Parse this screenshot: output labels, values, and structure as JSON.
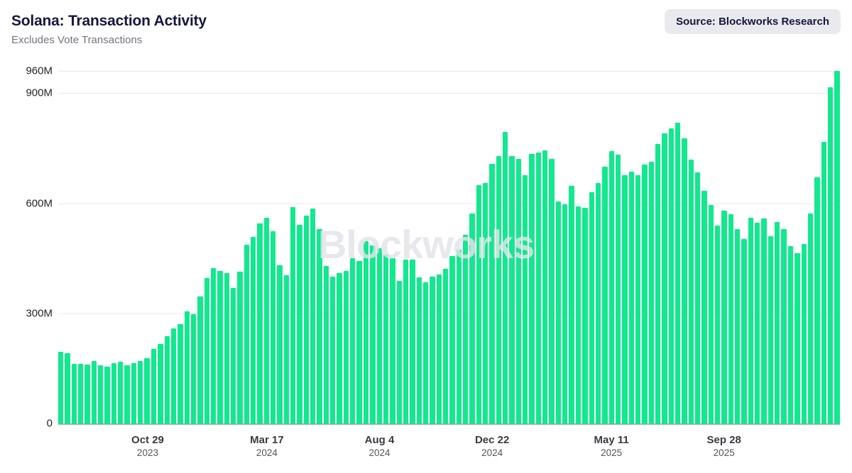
{
  "header": {
    "title": "Solana: Transaction Activity",
    "subtitle": "Excludes Vote Transactions",
    "source_badge": "Source: Blockworks Research"
  },
  "watermark": "Blockworks",
  "colors": {
    "bar": "#12e88e",
    "title_text": "#16163F",
    "subtitle_text": "#73737f",
    "badge_bg": "#e9eaed",
    "gridline": "#e9eaec",
    "baseline": "#a6a9ae"
  },
  "chart_data": {
    "type": "bar",
    "title": "Solana: Transaction Activity",
    "subtitle": "Excludes Vote Transactions",
    "unit": "transactions per period (millions)",
    "ylim": [
      0,
      960
    ],
    "grid": "horizontal",
    "legend": "none",
    "y_ticks": [
      {
        "label": "960M",
        "value": 960
      },
      {
        "label": "900M",
        "value": 900
      },
      {
        "label": "600M",
        "value": 600
      },
      {
        "label": "300M",
        "value": 300
      },
      {
        "label": "0",
        "value": 0
      }
    ],
    "x_tick_labels": [
      {
        "label": "Oct 29",
        "year": "2023",
        "bar_index": 13
      },
      {
        "label": "Mar 17",
        "year": "2024",
        "bar_index": 31
      },
      {
        "label": "Aug 4",
        "year": "2024",
        "bar_index": 48
      },
      {
        "label": "Dec 22",
        "year": "2024",
        "bar_index": 65
      },
      {
        "label": "May 11",
        "year": "2025",
        "bar_index": 83
      },
      {
        "label": "Sep 28",
        "year": "2025",
        "bar_index": 100
      }
    ],
    "values_unit": "M",
    "values": [
      197,
      193,
      164,
      163,
      162,
      172,
      160,
      156,
      166,
      170,
      161,
      166,
      172,
      180,
      205,
      217,
      240,
      261,
      271,
      306,
      298,
      348,
      397,
      424,
      416,
      410,
      370,
      414,
      488,
      509,
      546,
      561,
      524,
      432,
      404,
      590,
      542,
      567,
      586,
      530,
      430,
      402,
      410,
      416,
      451,
      443,
      497,
      486,
      478,
      460,
      451,
      389,
      447,
      447,
      399,
      385,
      401,
      406,
      422,
      457,
      474,
      515,
      573,
      650,
      655,
      708,
      728,
      795,
      729,
      722,
      677,
      735,
      739,
      745,
      722,
      606,
      598,
      648,
      592,
      588,
      631,
      656,
      700,
      743,
      733,
      677,
      687,
      677,
      706,
      714,
      762,
      791,
      803,
      820,
      776,
      720,
      685,
      635,
      596,
      540,
      580,
      571,
      530,
      503,
      561,
      548,
      559,
      511,
      550,
      530,
      484,
      464,
      490,
      573,
      671,
      768,
      915,
      960
    ]
  }
}
